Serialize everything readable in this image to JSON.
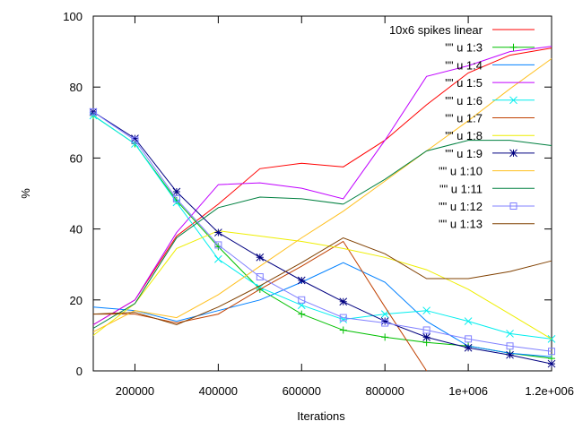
{
  "chart_data": {
    "type": "line",
    "title": "",
    "xlabel": "Iterations",
    "ylabel": "%",
    "xlim": [
      100000,
      1200000
    ],
    "ylim": [
      0,
      100
    ],
    "grid": false,
    "legend_position": "top-right",
    "x_ticks": [
      {
        "value": 200000,
        "label": "200000"
      },
      {
        "value": 400000,
        "label": "400000"
      },
      {
        "value": 600000,
        "label": "600000"
      },
      {
        "value": 800000,
        "label": "800000"
      },
      {
        "value": 1000000,
        "label": "1e+006"
      },
      {
        "value": 1200000,
        "label": "1.2e+006"
      }
    ],
    "y_ticks": [
      {
        "value": 0,
        "label": "0"
      },
      {
        "value": 20,
        "label": "20"
      },
      {
        "value": 40,
        "label": "40"
      },
      {
        "value": 60,
        "label": "60"
      },
      {
        "value": 80,
        "label": "80"
      },
      {
        "value": 100,
        "label": "100"
      }
    ],
    "series": [
      {
        "name": "10x6 spikes linear",
        "color": "#ff0000",
        "marker": "none",
        "x": [
          100000,
          200000,
          300000,
          400000,
          500000,
          600000,
          700000,
          800000,
          900000,
          1000000,
          1100000,
          1200000
        ],
        "y": [
          13,
          20,
          38,
          47,
          57,
          58.5,
          57.5,
          65,
          75,
          84,
          89,
          91
        ]
      },
      {
        "name": "\"\" u 1:3",
        "color": "#00c000",
        "marker": "plus",
        "x": [
          100000,
          200000,
          300000,
          400000,
          500000,
          600000,
          700000,
          800000,
          900000,
          1000000,
          1100000,
          1200000
        ],
        "y": [
          72,
          64,
          48,
          35,
          23,
          16,
          11.5,
          9.5,
          8,
          7,
          5,
          3.5
        ]
      },
      {
        "name": "\"\" u 1:4",
        "color": "#0080ff",
        "marker": "none",
        "x": [
          100000,
          200000,
          300000,
          400000,
          500000,
          600000,
          700000,
          800000,
          900000,
          1000000,
          1100000,
          1200000
        ],
        "y": [
          18,
          17,
          14,
          17,
          20,
          25,
          30.5,
          25,
          14,
          7,
          5,
          4
        ]
      },
      {
        "name": "\"\" u 1:5",
        "color": "#c000ff",
        "marker": "none",
        "x": [
          100000,
          200000,
          300000,
          400000,
          500000,
          600000,
          700000,
          800000,
          900000,
          1000000,
          1100000,
          1200000
        ],
        "y": [
          13,
          20,
          39,
          52.5,
          53,
          51.5,
          48.5,
          65,
          83,
          86,
          90,
          91.5
        ]
      },
      {
        "name": "\"\" u 1:6",
        "color": "#00eeee",
        "marker": "cross",
        "x": [
          100000,
          200000,
          300000,
          400000,
          500000,
          600000,
          700000,
          800000,
          900000,
          1000000,
          1100000,
          1200000
        ],
        "y": [
          72,
          64,
          47.5,
          31.5,
          23.5,
          18.5,
          14.5,
          16,
          17,
          14,
          10.5,
          9
        ]
      },
      {
        "name": "\"\" u 1:7",
        "color": "#c04000",
        "marker": "none",
        "x": [
          100000,
          200000,
          300000,
          400000,
          500000,
          600000,
          700000,
          800000,
          900000
        ],
        "y": [
          16,
          16,
          13.5,
          16,
          23,
          29.5,
          36.5,
          18,
          0
        ]
      },
      {
        "name": "\"\" u 1:8",
        "color": "#eeee00",
        "marker": "none",
        "x": [
          100000,
          200000,
          300000,
          400000,
          500000,
          600000,
          700000,
          800000,
          900000,
          1000000,
          1100000,
          1200000
        ],
        "y": [
          10,
          19,
          34.5,
          39.5,
          38,
          36.5,
          34.5,
          32,
          28.5,
          23,
          16,
          9
        ]
      },
      {
        "name": "\"\" u 1:9",
        "color": "#000080",
        "marker": "star",
        "x": [
          100000,
          200000,
          300000,
          400000,
          500000,
          600000,
          700000,
          800000,
          900000,
          1000000,
          1100000,
          1200000
        ],
        "y": [
          73,
          65.5,
          50.5,
          39,
          32,
          25.5,
          19.5,
          14,
          9.5,
          6.5,
          4.5,
          2
        ]
      },
      {
        "name": "\"\" u 1:10",
        "color": "#ffc020",
        "marker": "none",
        "x": [
          100000,
          200000,
          300000,
          400000,
          500000,
          600000,
          700000,
          800000,
          900000,
          1000000,
          1100000,
          1200000
        ],
        "y": [
          11,
          17,
          15,
          21.5,
          29.5,
          37.5,
          45,
          53.5,
          62,
          70.5,
          79.5,
          88
        ]
      },
      {
        "name": "\"\" u 1:11",
        "color": "#008040",
        "marker": "none",
        "x": [
          100000,
          200000,
          300000,
          400000,
          500000,
          600000,
          700000,
          800000,
          900000,
          1000000,
          1100000,
          1200000
        ],
        "y": [
          12,
          19,
          37.5,
          46,
          49,
          48.5,
          47,
          54,
          62,
          65,
          65,
          63.5
        ]
      },
      {
        "name": "\"\" u 1:12",
        "color": "#8080ff",
        "marker": "square",
        "x": [
          100000,
          200000,
          300000,
          400000,
          500000,
          600000,
          700000,
          800000,
          900000,
          1000000,
          1100000,
          1200000
        ],
        "y": [
          73,
          65,
          48.5,
          35.5,
          26.5,
          20,
          15,
          13.5,
          11.5,
          9,
          7,
          5.5
        ]
      },
      {
        "name": "\"\" u 1:13",
        "color": "#804000",
        "marker": "none",
        "x": [
          100000,
          200000,
          300000,
          400000,
          500000,
          600000,
          700000,
          800000,
          900000,
          1000000,
          1100000,
          1200000
        ],
        "y": [
          16,
          16.5,
          13,
          18,
          24,
          30.5,
          37.5,
          33,
          26,
          26,
          28,
          31
        ]
      }
    ]
  }
}
